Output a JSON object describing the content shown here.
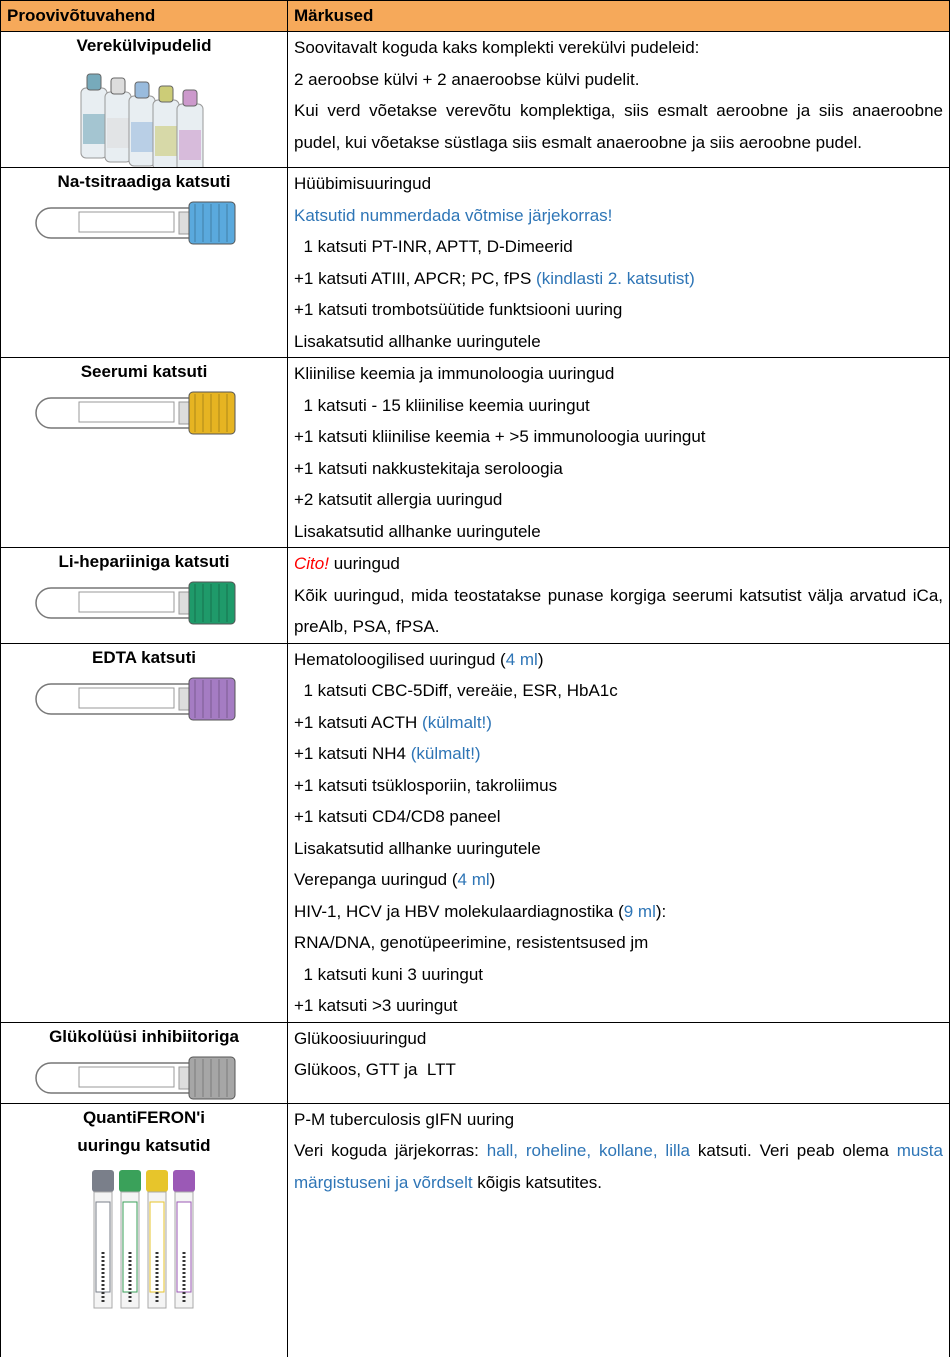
{
  "header": [
    "Proovivõtuvahend",
    "Märkused"
  ],
  "rows": [
    {
      "label": [
        "Verekülvipudelid"
      ],
      "notes": [
        [
          "Soovitavalt koguda kaks komplekti verekülvi pudeleid:"
        ],
        [
          "2 aeroobse külvi + 2 anaeroobse külvi pudelit."
        ],
        [
          "Kui verd võetakse verevõtu komplektiga, siis esmalt aeroobne ja siis anaeroobne pudel, kui võetakse süstlaga siis esmalt anaeroobne ja siis aeroobne pudel."
        ]
      ]
    },
    {
      "label": [
        "Na-tsitraadiga katsuti"
      ],
      "notes": [
        [
          "Hüübimisuuringud"
        ],
        [
          {
            "text": "Katsutid nummerdada võtmise järjekorras!",
            "color": "#2e75b6"
          }
        ],
        [
          "  1 katsuti PT-INR, APTT, D-Dimeerid"
        ],
        [
          "+1 katsuti ATIII, APCR; PC, fPS ",
          {
            "text": "(kindlasti 2. katsutist)",
            "color": "#2e75b6"
          }
        ],
        [
          "+1 katsuti trombotsüütide funktsiooni uuring"
        ],
        [
          "Lisakatsutid allhanke uuringutele"
        ]
      ]
    },
    {
      "label": [
        "Seerumi katsuti"
      ],
      "notes": [
        [
          "Kliinilise keemia ja immunoloogia uuringud"
        ],
        [
          "  1 katsuti - 15 kliinilise keemia uuringut"
        ],
        [
          "+1 katsuti kliinilise keemia + >5 immunoloogia uuringut"
        ],
        [
          "+1 katsuti nakkustekitaja seroloogia"
        ],
        [
          "+2 katsutit allergia uuringud"
        ],
        [
          "Lisakatsutid allhanke uuringutele"
        ]
      ]
    },
    {
      "label": [
        "Li-hepariiniga katsuti"
      ],
      "notes": [
        [
          {
            "text": "Cito!",
            "color": "#ff0000",
            "italic": true
          },
          " uuringud"
        ],
        [
          "Kõik uuringud, mida teostatakse punase korgiga seerumi katsutist välja arvatud iCa, preAlb, PSA, fPSA."
        ]
      ]
    },
    {
      "label": [
        "EDTA katsuti"
      ],
      "notes": [
        [
          "Hematoloogilised uuringud (",
          {
            "text": "4 ml",
            "color": "#2e75b6"
          },
          ")"
        ],
        [
          "  1 katsuti CBC-5Diff, vereäie, ESR, HbA1c"
        ],
        [
          "+1 katsuti ACTH ",
          {
            "text": "(külmalt!)",
            "color": "#2e75b6"
          }
        ],
        [
          "+1 katsuti NH4 ",
          {
            "text": "(külmalt!)",
            "color": "#2e75b6"
          }
        ],
        [
          "+1 katsuti tsüklosporiin, takroliimus"
        ],
        [
          "+1 katsuti CD4/CD8 paneel"
        ],
        [
          "Lisakatsutid allhanke uuringutele"
        ],
        [
          "Verepanga uuringud (",
          {
            "text": "4 ml",
            "color": "#2e75b6"
          },
          ")"
        ],
        [
          "HIV-1, HCV ja HBV molekulaardiagnostika (",
          {
            "text": "9 ml",
            "color": "#2e75b6"
          },
          "):"
        ],
        [
          "RNA/DNA, genotüpeerimine, resistentsused jm"
        ],
        [
          "  1 katsuti kuni 3 uuringut"
        ],
        [
          "+1 katsuti >3 uuringut"
        ]
      ]
    },
    {
      "label": [
        "Glükolüüsi inhibiitoriga"
      ],
      "notes": [
        [
          "Glükoosiuuringud"
        ],
        [
          "Glükoos, GTT ja  LTT"
        ]
      ]
    },
    {
      "label": [
        "QuantiFERON'i",
        "uuringu katsutid"
      ],
      "notes": [
        [
          "P-M tuberculosis gIFN uuring"
        ],
        [
          "Veri koguda järjekorras: ",
          {
            "text": "hall, roheline, kollane, lilla",
            "color": "#2e75b6"
          },
          " katsuti. Veri peab olema ",
          {
            "text": "musta märgistuseni ja võrdselt",
            "color": "#2e75b6"
          },
          " kõigis katsutites."
        ]
      ]
    }
  ]
}
